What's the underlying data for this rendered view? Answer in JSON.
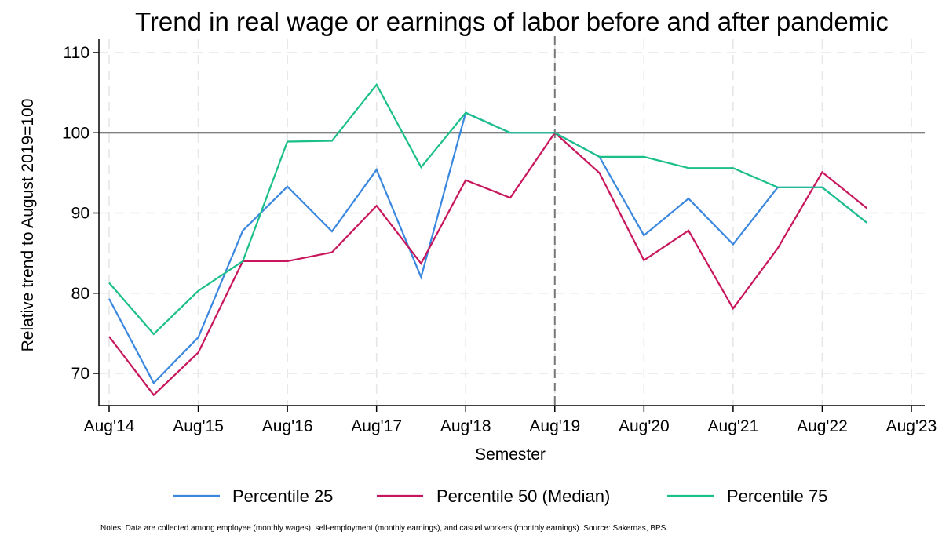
{
  "chart_data": {
    "type": "line",
    "title": "Trend in real wage or earnings of labor before and after pandemic",
    "xlabel": "Semester",
    "ylabel": "Relative trend to August 2019=100",
    "note": "Notes: Data are collected among employee (monthly wages), self-employment (monthly earnings), and casual workers (monthly earnings). Source: Sakernas, BPS.",
    "x_ticks": [
      {
        "x": 0,
        "label": "Aug'14"
      },
      {
        "x": 2,
        "label": "Aug'15"
      },
      {
        "x": 4,
        "label": "Aug'16"
      },
      {
        "x": 6,
        "label": "Aug'17"
      },
      {
        "x": 8,
        "label": "Aug'18"
      },
      {
        "x": 10,
        "label": "Aug'19"
      },
      {
        "x": 12,
        "label": "Aug'20"
      },
      {
        "x": 14,
        "label": "Aug'21"
      },
      {
        "x": 16,
        "label": "Aug'22"
      },
      {
        "x": 18,
        "label": "Aug'23"
      }
    ],
    "y_ticks": [
      70,
      80,
      90,
      100,
      110
    ],
    "xlim": [
      0,
      18
    ],
    "ylim": [
      65,
      110
    ],
    "reference_line_y": 100,
    "reference_line_x": 10,
    "grid": true,
    "legend_position": "bottom",
    "series": [
      {
        "name": "Percentile 25",
        "color": "#3a87e0",
        "values": [
          79.3,
          68.8,
          74.5,
          87.8,
          93.3,
          87.7,
          95.4,
          82.0,
          102.5,
          100,
          100,
          97.0,
          87.2,
          91.8,
          86.1,
          93.2,
          93.2,
          88.8
        ]
      },
      {
        "name": "Percentile 50 (Median)",
        "color": "#c8165c",
        "values": [
          74.6,
          67.3,
          72.6,
          84.0,
          84.0,
          85.1,
          90.9,
          83.7,
          94.1,
          91.9,
          100,
          95.0,
          84.1,
          87.8,
          78.1,
          85.6,
          95.1,
          90.6
        ]
      },
      {
        "name": "Percentile 75",
        "color": "#1bbf8a",
        "values": [
          81.3,
          74.9,
          80.3,
          84.0,
          98.9,
          99.0,
          106.0,
          95.7,
          102.5,
          100,
          100,
          97.0,
          97.0,
          95.6,
          95.6,
          93.2,
          93.2,
          88.8
        ]
      }
    ]
  }
}
